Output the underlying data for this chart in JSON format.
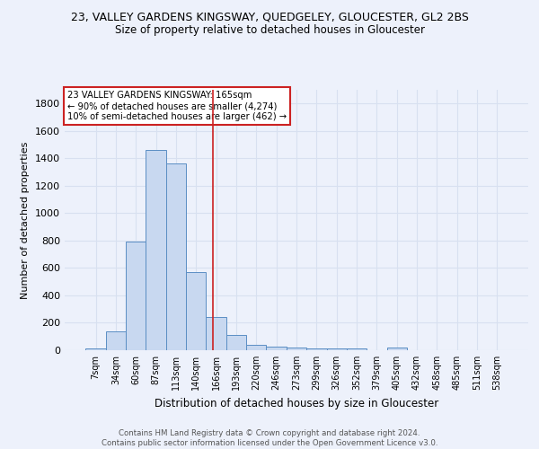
{
  "title": "23, VALLEY GARDENS KINGSWAY, QUEDGELEY, GLOUCESTER, GL2 2BS",
  "subtitle": "Size of property relative to detached houses in Gloucester",
  "xlabel": "Distribution of detached houses by size in Gloucester",
  "ylabel": "Number of detached properties",
  "bin_labels": [
    "7sqm",
    "34sqm",
    "60sqm",
    "87sqm",
    "113sqm",
    "140sqm",
    "166sqm",
    "193sqm",
    "220sqm",
    "246sqm",
    "273sqm",
    "299sqm",
    "326sqm",
    "352sqm",
    "379sqm",
    "405sqm",
    "432sqm",
    "458sqm",
    "485sqm",
    "511sqm",
    "538sqm"
  ],
  "bin_values": [
    10,
    135,
    790,
    1460,
    1360,
    570,
    245,
    110,
    40,
    25,
    20,
    13,
    15,
    10,
    0,
    20,
    0,
    0,
    0,
    0,
    0
  ],
  "bar_color": "#c8d8f0",
  "bar_edge_color": "#5b8ec4",
  "grid_color": "#d8e0f0",
  "background_color": "#edf1fb",
  "vline_x": 5.82,
  "vline_color": "#cc2222",
  "annotation_text": "23 VALLEY GARDENS KINGSWAY: 165sqm\n← 90% of detached houses are smaller (4,274)\n10% of semi-detached houses are larger (462) →",
  "annotation_box_color": "white",
  "annotation_box_edge": "#cc2222",
  "footer_text": "Contains HM Land Registry data © Crown copyright and database right 2024.\nContains public sector information licensed under the Open Government Licence v3.0.",
  "ylim": [
    0,
    1900
  ],
  "yticks": [
    0,
    200,
    400,
    600,
    800,
    1000,
    1200,
    1400,
    1600,
    1800
  ]
}
